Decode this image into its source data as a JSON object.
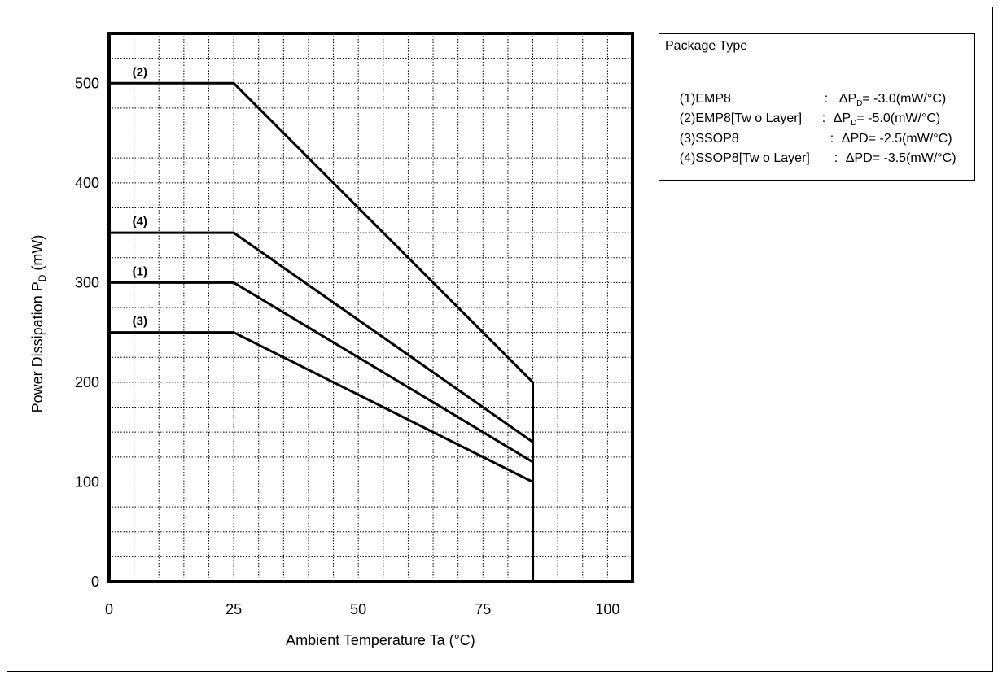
{
  "chart_data": {
    "type": "line",
    "title": "",
    "xlabel": "Ambient Temperature Ta (°C)",
    "ylabel": "Power Dissipation P",
    "ylabel_sub": "D",
    "ylabel_unit": " (mW)",
    "xlim": [
      0,
      105
    ],
    "ylim": [
      0,
      550
    ],
    "xticks": [
      0,
      25,
      50,
      75,
      100
    ],
    "yticks": [
      0,
      100,
      200,
      300,
      400,
      500
    ],
    "grid": true,
    "series": [
      {
        "name": "(1)",
        "x": [
          0,
          25,
          85,
          85
        ],
        "y": [
          300,
          300,
          120,
          0
        ]
      },
      {
        "name": "(2)",
        "x": [
          0,
          25,
          85,
          85
        ],
        "y": [
          500,
          500,
          200,
          0
        ]
      },
      {
        "name": "(3)",
        "x": [
          0,
          25,
          85,
          85
        ],
        "y": [
          250,
          250,
          100,
          0
        ]
      },
      {
        "name": "(4)",
        "x": [
          0,
          25,
          85,
          85
        ],
        "y": [
          350,
          350,
          140,
          0
        ]
      }
    ],
    "annotations": [
      {
        "text": "(2)",
        "x": 5,
        "y": 500
      },
      {
        "text": "(4)",
        "x": 5,
        "y": 350
      },
      {
        "text": "(1)",
        "x": 5,
        "y": 300
      },
      {
        "text": "(3)",
        "x": 5,
        "y": 250
      }
    ]
  },
  "legend": {
    "title": "Package Type",
    "rows": [
      {
        "code": "(1)EMP8",
        "sep": ":",
        "rate": "ΔP",
        "rate_sub": "D",
        "rate_value": "= -3.0(mW/°C)"
      },
      {
        "code": "(2)EMP8[Tw o Layer]",
        "sep": ":",
        "rate": "ΔP",
        "rate_sub": "D",
        "rate_value": "= -5.0(mW/°C)"
      },
      {
        "code": "(3)SSOP8",
        "sep": ":",
        "rate": "ΔPD",
        "rate_sub": "",
        "rate_value": "= -2.5(mW/°C)"
      },
      {
        "code": "(4)SSOP8[Tw o Layer]",
        "sep": ":",
        "rate": "ΔPD",
        "rate_sub": "",
        "rate_value": "= -3.5(mW/°C)"
      }
    ]
  },
  "colors": {
    "line": "#000000",
    "grid": "#000000",
    "background": "#ffffff"
  }
}
